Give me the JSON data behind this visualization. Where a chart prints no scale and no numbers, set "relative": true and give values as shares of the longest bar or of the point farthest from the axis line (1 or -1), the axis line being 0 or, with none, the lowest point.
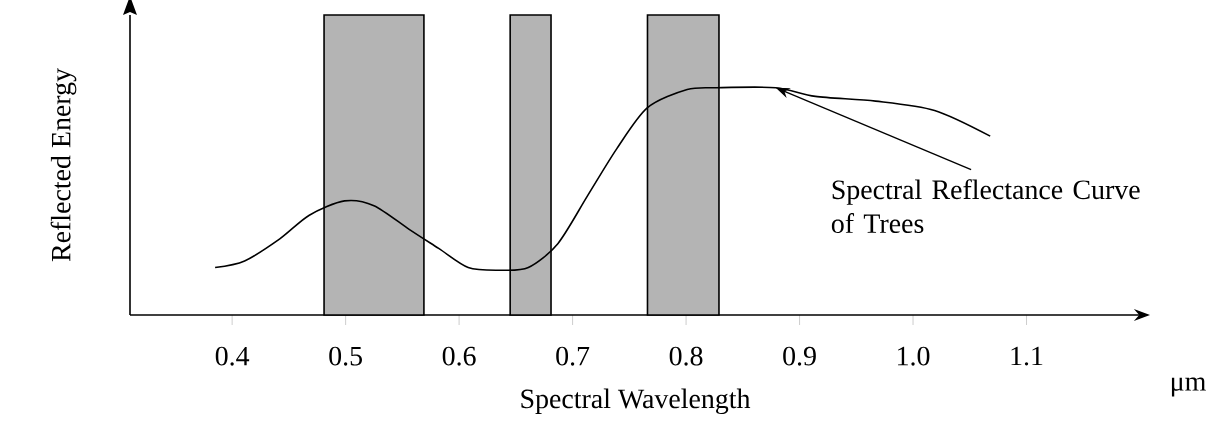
{
  "chart_data": {
    "type": "line",
    "relative": true,
    "xlabel": "Spectral Wavelength",
    "ylabel": "Reflected Energy",
    "x": [
      0.385,
      0.411,
      0.442,
      0.468,
      0.499,
      0.525,
      0.556,
      0.582,
      0.608,
      0.635,
      0.661,
      0.687,
      0.713,
      0.739,
      0.766,
      0.801,
      0.827,
      0.879,
      0.914,
      0.967,
      1.019,
      1.068
    ],
    "series": [
      {
        "color": "#000000",
        "values": [
          0.209,
          0.238,
          0.335,
          0.439,
          0.502,
          0.481,
          0.377,
          0.293,
          0.209,
          0.197,
          0.209,
          0.314,
          0.523,
          0.732,
          0.912,
          0.992,
          1,
          1,
          0.962,
          0.941,
          0.9,
          0.787
        ]
      }
    ],
    "xlim": [
      0.31,
      1.2
    ],
    "xticks": [
      0.4,
      0.5,
      0.6,
      0.7,
      0.8,
      0.9,
      {
        "value": 1.0,
        "label": "1.0"
      },
      1.1
    ],
    "bands": [
      {
        "axis": "x",
        "from": 0.481,
        "to": 0.569,
        "color": "#b4b4b4"
      },
      {
        "axis": "x",
        "from": 0.645,
        "to": 0.681,
        "color": "#b4b4b4"
      },
      {
        "axis": "x",
        "from": 0.766,
        "to": 0.829,
        "color": "#b4b4b4"
      }
    ],
    "annotations": [
      {
        "text": "Spectral Reflectance Curve of Trees",
        "x": 0.879,
        "y": 1
      },
      "μm"
    ]
  }
}
